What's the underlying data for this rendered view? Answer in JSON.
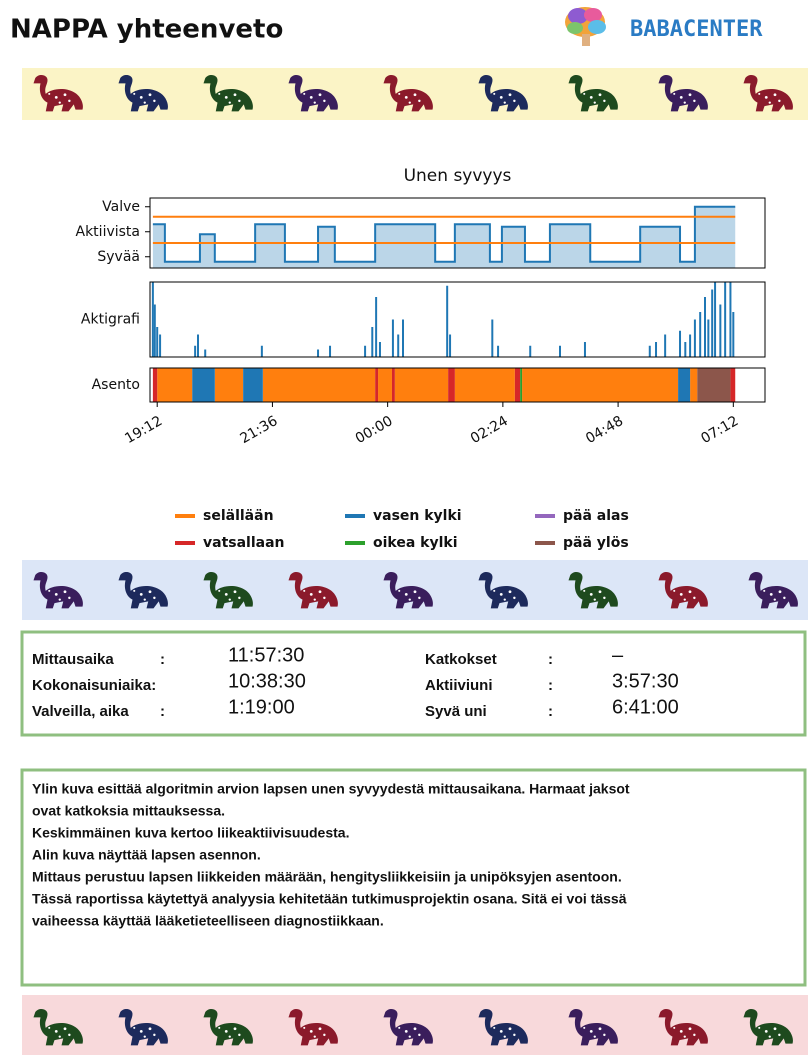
{
  "header": {
    "title": "NAPPA yhteenveto",
    "logo": "BABACENTER"
  },
  "chart_data": [
    {
      "type": "line",
      "title": "Unen syvyys",
      "xlim": [
        19.05,
        31.86
      ],
      "ylim": [
        -0.45,
        2.35
      ],
      "yticks": [
        {
          "value": 2,
          "label": "Valve"
        },
        {
          "value": 1,
          "label": "Aktiivista"
        },
        {
          "value": 0,
          "label": "Syvää"
        }
      ],
      "reference_lines": {
        "color": "#ff7f0e",
        "values": [
          1.6,
          0.55
        ]
      },
      "series": [
        {
          "color": "#1f77b4",
          "x": [
            19.11,
            19.36,
            19.36,
            20.09,
            20.09,
            20.4,
            20.4,
            21.24,
            21.24,
            21.86,
            21.86,
            22.55,
            22.55,
            22.9,
            22.9,
            23.74,
            23.74,
            24.99,
            24.99,
            25.4,
            25.4,
            26.13,
            26.13,
            26.38,
            26.38,
            26.86,
            26.86,
            27.38,
            27.38,
            28.22,
            28.22,
            29.26,
            29.26,
            30.09,
            30.09,
            30.4,
            30.4,
            31.24
          ],
          "values": [
            1.3,
            1.3,
            -0.2,
            -0.2,
            0.9,
            0.9,
            -0.2,
            -0.2,
            1.3,
            1.3,
            -0.2,
            -0.2,
            1.2,
            1.2,
            -0.2,
            -0.2,
            1.3,
            1.3,
            -0.2,
            -0.2,
            1.3,
            1.3,
            -0.2,
            -0.2,
            1.2,
            1.2,
            -0.2,
            -0.2,
            1.3,
            1.3,
            -0.2,
            -0.2,
            1.2,
            1.2,
            -0.2,
            -0.2,
            2.0,
            2.0
          ]
        }
      ]
    },
    {
      "type": "bar",
      "ylabel": "Aktigrafi",
      "xlim": [
        19.05,
        31.86
      ],
      "ylim": [
        0,
        1
      ],
      "color": "#1f77b4",
      "x": [
        19.11,
        19.15,
        19.2,
        19.26,
        19.99,
        20.05,
        20.2,
        21.38,
        22.55,
        22.8,
        23.53,
        23.68,
        23.76,
        23.84,
        24.11,
        24.22,
        24.32,
        25.24,
        25.3,
        26.18,
        26.3,
        26.97,
        27.59,
        28.11,
        29.46,
        29.59,
        29.78,
        30.09,
        30.2,
        30.3,
        30.4,
        30.51,
        30.61,
        30.68,
        30.76,
        30.82,
        30.93,
        31.03,
        31.14,
        31.2
      ],
      "values": [
        1.0,
        0.7,
        0.4,
        0.3,
        0.15,
        0.3,
        0.1,
        0.15,
        0.1,
        0.15,
        0.15,
        0.4,
        0.8,
        0.2,
        0.5,
        0.3,
        0.5,
        0.95,
        0.3,
        0.5,
        0.15,
        0.15,
        0.15,
        0.2,
        0.15,
        0.2,
        0.3,
        0.35,
        0.2,
        0.3,
        0.5,
        0.6,
        0.8,
        0.5,
        0.9,
        1.0,
        0.7,
        1.0,
        1.0,
        0.6
      ]
    },
    {
      "type": "timeline",
      "ylabel": "Asento",
      "xlim": [
        19.05,
        31.86
      ],
      "xticks": [
        {
          "value": 19.2,
          "label": "19:12"
        },
        {
          "value": 21.6,
          "label": "21:36"
        },
        {
          "value": 24,
          "label": "00:00"
        },
        {
          "value": 26.4,
          "label": "02:24"
        },
        {
          "value": 28.8,
          "label": "04:48"
        },
        {
          "value": 31.2,
          "label": "07:12"
        }
      ],
      "series": [
        {
          "name": "selällään",
          "color": "#ff7f0e",
          "segments": [
            [
              19.2,
              19.93
            ],
            [
              20.4,
              20.99
            ],
            [
              21.4,
              23.74
            ],
            [
              23.8,
              24.09
            ],
            [
              24.15,
              25.26
            ],
            [
              25.4,
              26.65
            ],
            [
              26.8,
              30.05
            ],
            [
              30.3,
              30.45
            ]
          ]
        },
        {
          "name": "vatsallaan",
          "color": "#d62728",
          "segments": [
            [
              19.11,
              19.2
            ],
            [
              23.74,
              23.8
            ],
            [
              24.09,
              24.15
            ],
            [
              25.26,
              25.4
            ],
            [
              26.65,
              26.76
            ],
            [
              31.14,
              31.24
            ]
          ]
        },
        {
          "name": "vasen kylki",
          "color": "#1f77b4",
          "segments": [
            [
              19.93,
              20.4
            ],
            [
              20.99,
              21.4
            ],
            [
              30.05,
              30.3
            ]
          ]
        },
        {
          "name": "oikea kylki",
          "color": "#2ca02c",
          "segments": [
            [
              26.76,
              26.8
            ]
          ]
        },
        {
          "name": "pää alas",
          "color": "#9467bd",
          "segments": []
        },
        {
          "name": "pää ylös",
          "color": "#8c564b",
          "segments": [
            [
              30.45,
              31.14
            ]
          ]
        }
      ]
    }
  ],
  "info": {
    "left": [
      {
        "label": "Mittausaika",
        "sep": ":",
        "value": "11:57:30"
      },
      {
        "label": "Kokonaisuniaika:",
        "value": "10:38:30"
      },
      {
        "label": "Valveilla, aika",
        "sep": ":",
        "value": "1:19:00"
      }
    ],
    "right": [
      {
        "label": "Katkokset",
        "sep": ":",
        "value": "–"
      },
      {
        "label": "Aktiiviuni",
        "sep": ":",
        "value": "3:57:30"
      },
      {
        "label": "Syvä uni",
        "sep": ":",
        "value": "6:41:00"
      }
    ]
  },
  "description": [
    "Ylin kuva esittää algoritmin arvion lapsen unen syvyydestä mittausaikana. Harmaat jaksot",
    "ovat katkoksia mittauksessa.",
    "Keskimmäinen kuva kertoo liikeaktiivisuudesta.",
    "Alin kuva näyttää lapsen asennon.",
    "Mittaus perustuu lapsen liikkeiden määrään, hengitysliikkeisiin ja unipöksyjen asentoon.",
    "Tässä raportissa käytettyä analyysia kehitetään tutkimusprojektin osana. Sitä ei voi tässä",
    "vaiheessa käyttää lääketieteelliseen diagnostiikkaan."
  ]
}
